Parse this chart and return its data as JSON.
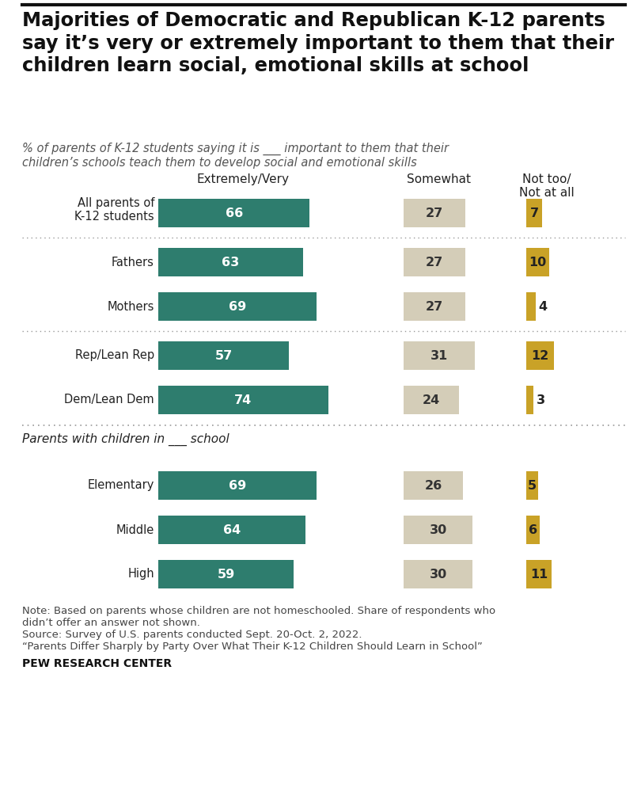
{
  "title": "Majorities of Democratic and Republican K-12 parents\nsay it’s very or extremely important to them that their\nchildren learn social, emotional skills at school",
  "subtitle_line1": "% of parents of K-12 students saying it is ___ important to them that their",
  "subtitle_line2": "children’s schools teach them to develop social and emotional skills",
  "col_headers": [
    "Extremely/Very",
    "Somewhat",
    "Not too/\nNot at all"
  ],
  "categories": [
    "All parents of\nK-12 students",
    "Fathers",
    "Mothers",
    "Rep/Lean Rep",
    "Dem/Lean Dem",
    "Elementary",
    "Middle",
    "High"
  ],
  "extremely_very": [
    66,
    63,
    69,
    57,
    74,
    69,
    64,
    59
  ],
  "somewhat": [
    27,
    27,
    27,
    31,
    24,
    26,
    30,
    30
  ],
  "not_too": [
    7,
    10,
    4,
    12,
    3,
    5,
    6,
    11
  ],
  "color_green": "#2e7d6e",
  "color_tan": "#d4cdb8",
  "color_gold": "#c9a227",
  "background": "#ffffff",
  "section_label": "Parents with children in ___ school",
  "note1": "Note: Based on parents whose children are not homeschooled. Share of respondents who",
  "note2": "didn’t offer an answer not shown.",
  "note3": "Source: Survey of U.S. parents conducted Sept. 20-Oct. 2, 2022.",
  "note4": "“Parents Differ Sharply by Party Over What Their K-12 Children Should Learn in School”",
  "source_bold": "PEW RESEARCH CENTER"
}
